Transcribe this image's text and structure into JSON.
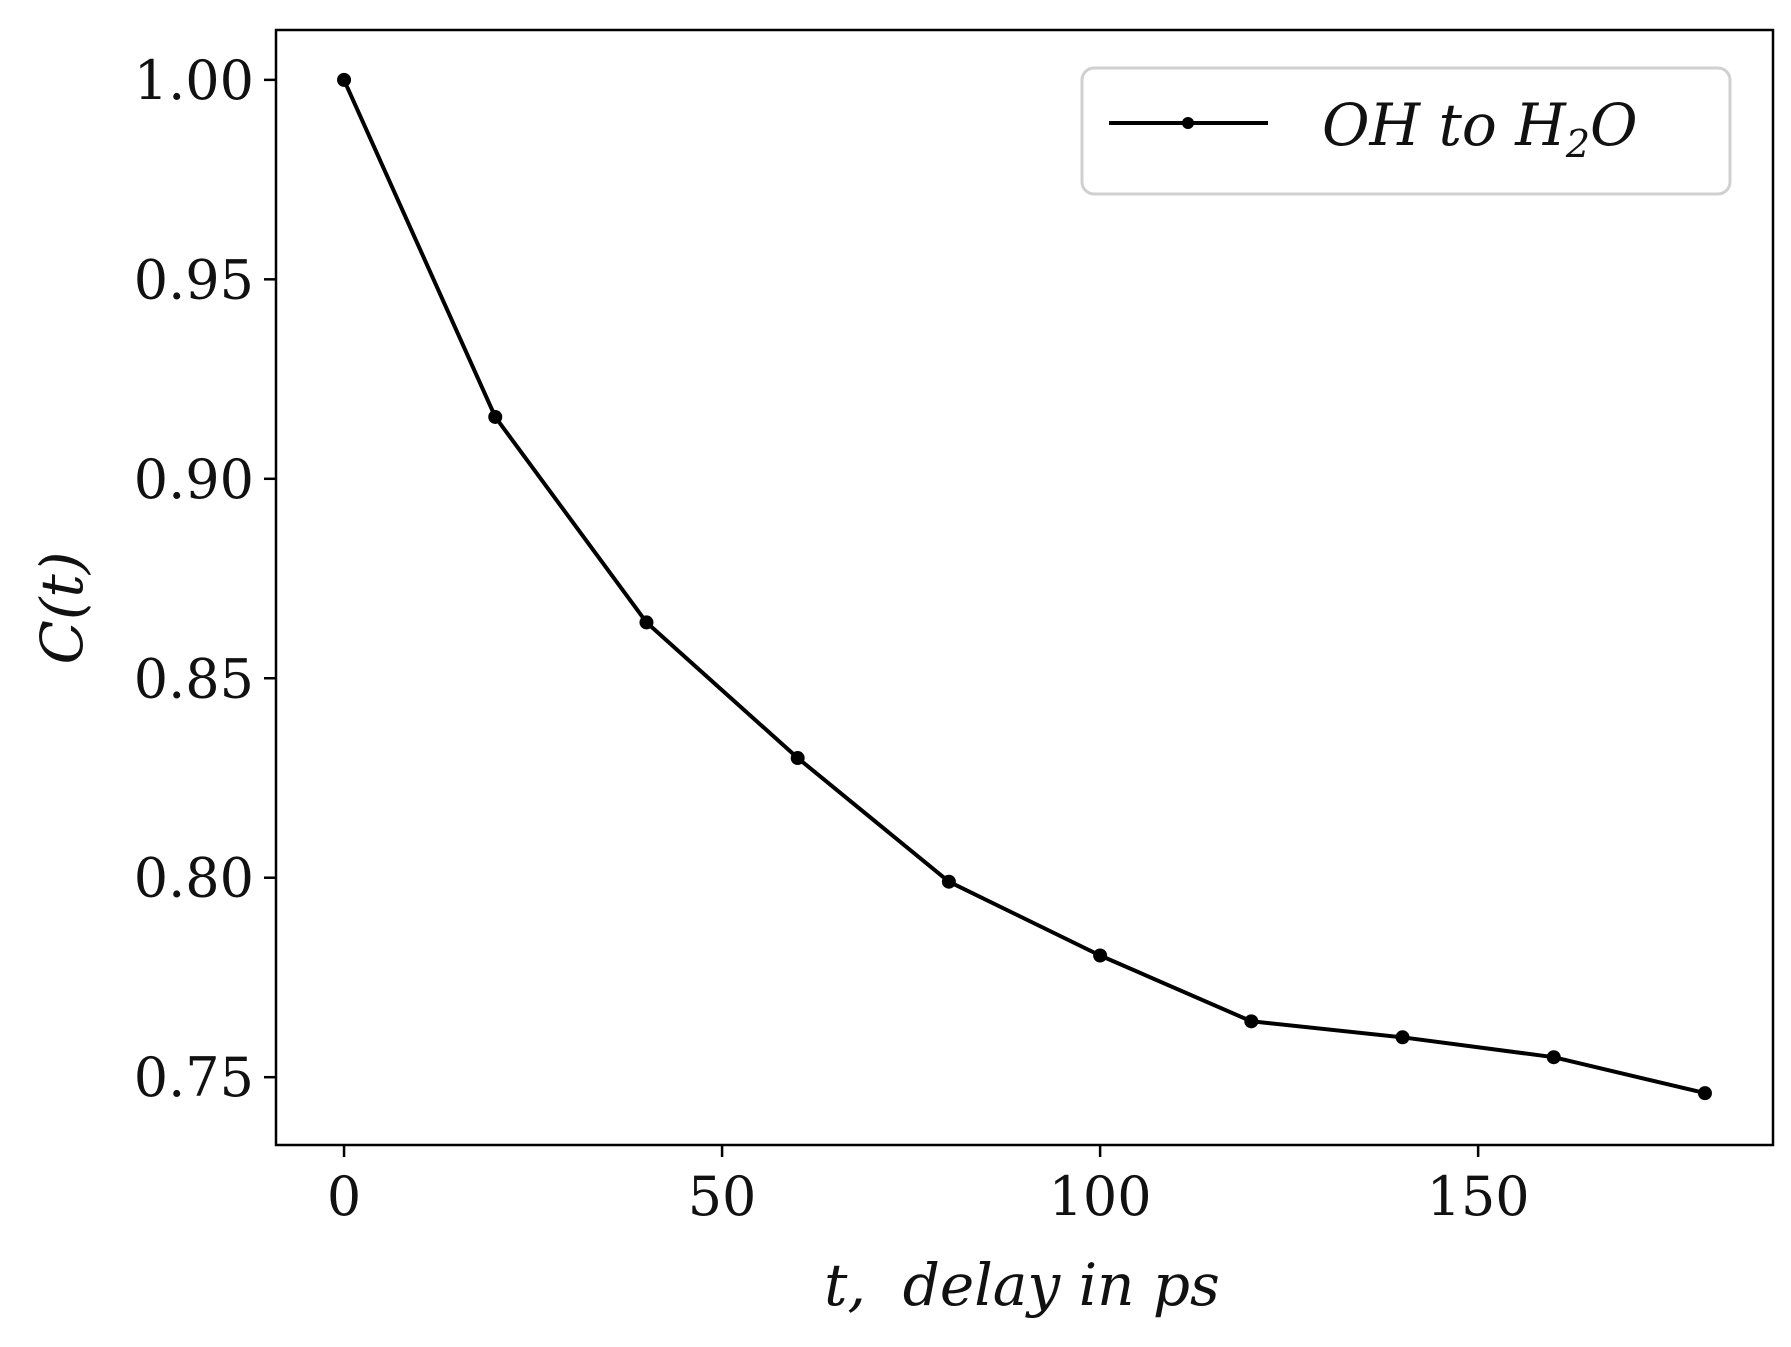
{
  "chart_data": {
    "type": "line",
    "xlabel": "t,  delay in ps",
    "ylabel": "C(t)",
    "xlim": [
      -9,
      189
    ],
    "ylim": [
      0.733,
      1.0125
    ],
    "xticks": [
      0,
      50,
      100,
      150
    ],
    "xtick_labels": [
      "0",
      "50",
      "100",
      "150"
    ],
    "yticks": [
      0.75,
      0.8,
      0.85,
      0.9,
      0.95,
      1.0
    ],
    "ytick_labels": [
      "0.75",
      "0.80",
      "0.85",
      "0.90",
      "0.95",
      "1.00"
    ],
    "grid": false,
    "legend_position": "top-right",
    "series": [
      {
        "name": "OH to H2O",
        "color": "#000000",
        "marker": "dot",
        "x": [
          0,
          20,
          40,
          60,
          80,
          100,
          120,
          140,
          160,
          180
        ],
        "y": [
          1.0,
          0.9155,
          0.864,
          0.83,
          0.799,
          0.7805,
          0.764,
          0.76,
          0.755,
          0.746
        ]
      }
    ],
    "legend": {
      "label_prefix": "OH to H",
      "label_subscript": "2",
      "label_suffix": "O"
    }
  }
}
